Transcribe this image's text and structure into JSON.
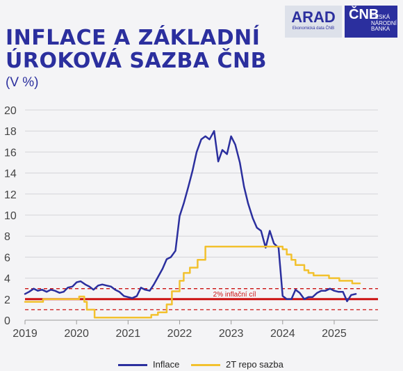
{
  "header": {
    "title_line1": "INFLACE A ZÁKLADNÍ",
    "title_line2": "ÚROKOVÁ SAZBA ČNB",
    "unit": "(V %)"
  },
  "logos": {
    "arad": "ARAD",
    "arad_sub": "Ekonomická data ČNB",
    "cnb_mark": "ČNB",
    "cnb_name": [
      "ČESKÁ",
      "NÁRODNÍ",
      "BANKA"
    ]
  },
  "colors": {
    "title": "#2b2f9e",
    "inflation": "#2b2f9e",
    "repo": "#f2c12e",
    "target": "#cc1111"
  },
  "chart_data": {
    "type": "line",
    "xlim": [
      2019.0,
      2025.85
    ],
    "ylim": [
      0,
      20
    ],
    "y_ticks": [
      0,
      2,
      4,
      6,
      8,
      10,
      12,
      14,
      16,
      18,
      20
    ],
    "x_ticks": [
      {
        "value": 2019,
        "label": "2019"
      },
      {
        "value": 2020,
        "label": "2020"
      },
      {
        "value": 2021,
        "label": "2021"
      },
      {
        "value": 2022,
        "label": "2022"
      },
      {
        "value": 2023,
        "label": "2023"
      },
      {
        "value": 2024,
        "label": "2024"
      },
      {
        "value": 2025,
        "label": "2025"
      }
    ],
    "grid": "horizontal",
    "legend_position": "bottom",
    "target": {
      "value": 2,
      "band": [
        1,
        3
      ],
      "label": "2% inflační cíl"
    },
    "series": [
      {
        "name": "Inflace",
        "style": "line",
        "x": [
          2019.0,
          2019.08,
          2019.17,
          2019.25,
          2019.33,
          2019.42,
          2019.5,
          2019.58,
          2019.67,
          2019.75,
          2019.83,
          2019.92,
          2020.0,
          2020.08,
          2020.17,
          2020.25,
          2020.33,
          2020.42,
          2020.5,
          2020.58,
          2020.67,
          2020.75,
          2020.83,
          2020.92,
          2021.0,
          2021.08,
          2021.17,
          2021.25,
          2021.33,
          2021.42,
          2021.5,
          2021.58,
          2021.67,
          2021.75,
          2021.83,
          2021.92,
          2022.0,
          2022.08,
          2022.17,
          2022.25,
          2022.33,
          2022.42,
          2022.5,
          2022.58,
          2022.67,
          2022.75,
          2022.83,
          2022.92,
          2023.0,
          2023.08,
          2023.17,
          2023.25,
          2023.33,
          2023.42,
          2023.5,
          2023.58,
          2023.67,
          2023.75,
          2023.83,
          2023.92,
          2024.0,
          2024.08,
          2024.17,
          2024.25,
          2024.33,
          2024.42,
          2024.5,
          2024.58,
          2024.67,
          2024.75,
          2024.83,
          2024.92,
          2025.0,
          2025.08,
          2025.17,
          2025.25,
          2025.33,
          2025.42
        ],
        "y": [
          2.5,
          2.7,
          3.0,
          2.8,
          2.9,
          2.7,
          2.9,
          2.8,
          2.6,
          2.7,
          3.1,
          3.2,
          3.6,
          3.7,
          3.4,
          3.2,
          2.9,
          3.3,
          3.4,
          3.3,
          3.2,
          2.9,
          2.7,
          2.3,
          2.2,
          2.1,
          2.3,
          3.1,
          2.9,
          2.8,
          3.4,
          4.1,
          4.9,
          5.8,
          6.0,
          6.6,
          9.9,
          11.1,
          12.7,
          14.2,
          16.0,
          17.2,
          17.5,
          17.2,
          18.0,
          15.1,
          16.2,
          15.8,
          17.5,
          16.7,
          15.0,
          12.7,
          11.1,
          9.7,
          8.8,
          8.5,
          6.9,
          8.5,
          7.3,
          6.9,
          2.3,
          2.0,
          2.0,
          2.9,
          2.6,
          2.0,
          2.2,
          2.2,
          2.6,
          2.8,
          2.8,
          3.0,
          2.8,
          2.7,
          2.7,
          1.8,
          2.4,
          2.5
        ]
      },
      {
        "name": "2T repo sazba",
        "style": "step",
        "x": [
          2019.0,
          2019.35,
          2019.4,
          2020.05,
          2020.15,
          2020.2,
          2020.35,
          2020.95,
          2021.45,
          2021.58,
          2021.65,
          2021.75,
          2021.85,
          2021.92,
          2022.0,
          2022.08,
          2022.2,
          2022.35,
          2022.5,
          2023.0,
          2023.92,
          2024.0,
          2024.08,
          2024.17,
          2024.25,
          2024.42,
          2024.5,
          2024.6,
          2024.75,
          2024.9,
          2025.1,
          2025.35,
          2025.5
        ],
        "y": [
          1.75,
          2.0,
          2.0,
          2.25,
          1.75,
          1.0,
          0.25,
          0.25,
          0.5,
          0.75,
          0.75,
          1.5,
          2.75,
          2.75,
          3.75,
          4.5,
          5.0,
          5.75,
          7.0,
          7.0,
          7.0,
          6.75,
          6.25,
          5.75,
          5.25,
          4.75,
          4.5,
          4.25,
          4.25,
          4.0,
          3.75,
          3.5,
          3.5
        ]
      }
    ]
  }
}
